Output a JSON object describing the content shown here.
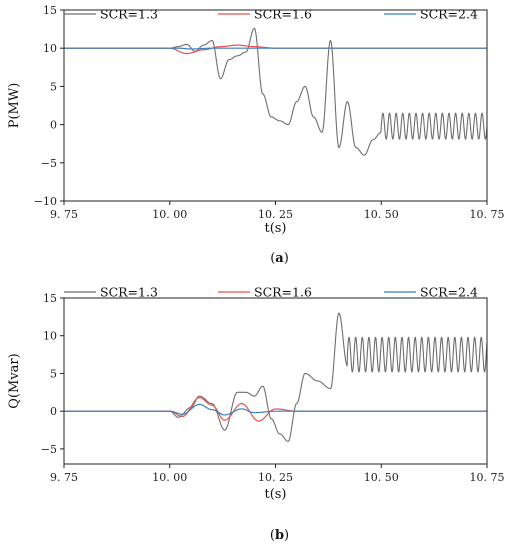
{
  "chart_data": [
    {
      "type": "line",
      "caption_open": "(",
      "caption_letter": "a",
      "caption_close": ")",
      "xlabel": "t(s)",
      "ylabel": "P(MW)",
      "xlim": [
        9.75,
        10.75
      ],
      "ylim": [
        -10,
        15
      ],
      "xticks": [
        9.75,
        10.0,
        10.25,
        10.5,
        10.75
      ],
      "xtick_labels": [
        "9. 75",
        "10. 00",
        "10. 25",
        "10. 50",
        "10. 75"
      ],
      "yticks": [
        -10,
        -5,
        0,
        5,
        10,
        15
      ],
      "ytick_labels": [
        "−10",
        "−5",
        "0",
        "5",
        "10",
        "15"
      ],
      "legend_position": "top",
      "grid": false,
      "series": [
        {
          "name": "SCR=1.3",
          "color": "#6e6e6e",
          "x": [
            9.75,
            10.0,
            10.02,
            10.04,
            10.06,
            10.08,
            10.1,
            10.12,
            10.14,
            10.16,
            10.18,
            10.2,
            10.22,
            10.24,
            10.26,
            10.28,
            10.3,
            10.32,
            10.34,
            10.36,
            10.38,
            10.4,
            10.42,
            10.44,
            10.46,
            10.48,
            10.5,
            10.6,
            10.75
          ],
          "y": [
            10,
            10,
            10.2,
            10.5,
            9.6,
            10.4,
            11,
            6,
            8.5,
            9,
            9.5,
            12.6,
            4,
            1,
            0.5,
            0,
            3,
            5,
            1,
            -1,
            11,
            -3,
            3,
            -3,
            -4,
            -2,
            -1,
            0,
            0
          ],
          "oscillation": {
            "start": 10.5,
            "center": -0.2,
            "amplitude": 1.7,
            "frequency_hz": 64
          }
        },
        {
          "name": "SCR=1.6",
          "color": "#e8514b",
          "x": [
            9.75,
            10.0,
            10.04,
            10.08,
            10.12,
            10.16,
            10.2,
            10.25,
            10.3,
            10.75
          ],
          "y": [
            10,
            10,
            9.3,
            9.8,
            10.2,
            10.4,
            10.2,
            10,
            10,
            10
          ]
        },
        {
          "name": "SCR=2.4",
          "color": "#3b7fbf",
          "x": [
            9.75,
            10.0,
            10.02,
            10.05,
            10.1,
            10.75
          ],
          "y": [
            10,
            10,
            10,
            9.9,
            10,
            10
          ]
        }
      ]
    },
    {
      "type": "line",
      "caption_open": "(",
      "caption_letter": "b",
      "caption_close": ")",
      "xlabel": "t(s)",
      "ylabel": "Q(Mvar)",
      "xlim": [
        9.75,
        10.75
      ],
      "ylim": [
        -7,
        15
      ],
      "xticks": [
        9.75,
        10.0,
        10.25,
        10.5,
        10.75
      ],
      "xtick_labels": [
        "9. 75",
        "10. 00",
        "10. 25",
        "10. 50",
        "10. 75"
      ],
      "yticks": [
        -5,
        0,
        5,
        10,
        15
      ],
      "ytick_labels": [
        "−5",
        "0",
        "5",
        "10",
        "15"
      ],
      "legend_position": "top",
      "grid": false,
      "series": [
        {
          "name": "SCR=1.3",
          "color": "#6e6e6e",
          "x": [
            9.75,
            10.0,
            10.02,
            10.05,
            10.07,
            10.1,
            10.13,
            10.16,
            10.18,
            10.2,
            10.22,
            10.24,
            10.26,
            10.28,
            10.3,
            10.32,
            10.35,
            10.38,
            10.4,
            10.42,
            10.5,
            10.6,
            10.75
          ],
          "y": [
            0,
            0,
            -0.8,
            0.5,
            2,
            1,
            -2.5,
            2.5,
            2.5,
            2,
            3.3,
            -1,
            -3,
            -4,
            1,
            5,
            4,
            3,
            13,
            6,
            7,
            7,
            7
          ],
          "oscillation": {
            "start": 10.42,
            "center": 7.5,
            "amplitude": 2.3,
            "frequency_hz": 64
          }
        },
        {
          "name": "SCR=1.6",
          "color": "#e8514b",
          "x": [
            9.75,
            10.0,
            10.03,
            10.07,
            10.1,
            10.13,
            10.17,
            10.21,
            10.25,
            10.3,
            10.75
          ],
          "y": [
            0,
            0,
            -0.7,
            1.8,
            0.8,
            -1.2,
            1,
            -1.3,
            0.3,
            0,
            0
          ]
        },
        {
          "name": "SCR=2.4",
          "color": "#3b7fbf",
          "x": [
            9.75,
            10.0,
            10.03,
            10.07,
            10.1,
            10.13,
            10.17,
            10.2,
            10.25,
            10.75
          ],
          "y": [
            0,
            0,
            -0.4,
            0.9,
            0.2,
            -0.5,
            0.3,
            -0.2,
            0,
            0
          ]
        }
      ]
    }
  ]
}
